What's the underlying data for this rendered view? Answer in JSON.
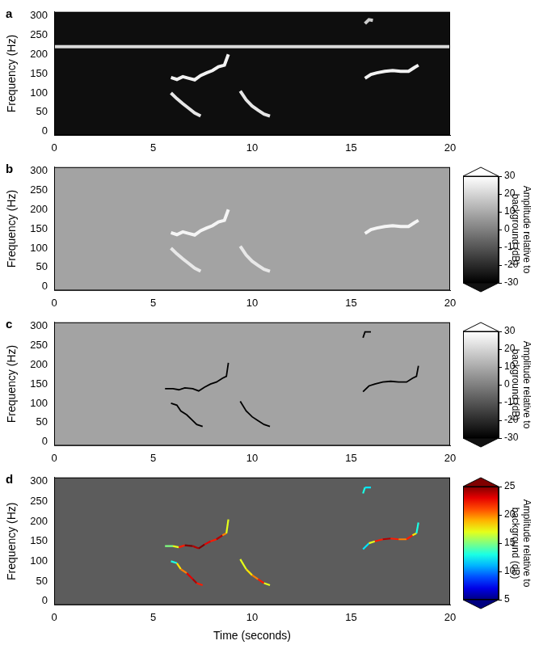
{
  "chart_data": [
    {
      "type": "line",
      "panel": "a",
      "y_label": "Frequency (Hz)",
      "grid": false,
      "xlim": [
        0,
        20
      ],
      "xticks": [
        0,
        5,
        10,
        15,
        20
      ],
      "ylim": [
        -10,
        310
      ],
      "yticks": [
        0,
        50,
        100,
        150,
        200,
        250,
        300
      ],
      "series": [
        {
          "color": "#d9d9d9",
          "x": [
            0,
            20
          ],
          "y": [
            220,
            220
          ]
        },
        {
          "color": "#f2f2f2",
          "x": [
            5.9,
            6.2,
            6.5,
            6.8,
            7.1,
            7.4,
            7.7,
            8.0,
            8.3,
            8.6,
            8.8
          ],
          "y": [
            140,
            135,
            142,
            138,
            134,
            145,
            152,
            158,
            168,
            172,
            200
          ]
        },
        {
          "color": "#e6e6e6",
          "x": [
            5.9,
            6.2,
            6.5,
            6.8,
            7.1,
            7.4
          ],
          "y": [
            100,
            85,
            72,
            60,
            48,
            40
          ]
        },
        {
          "color": "#e6e6e6",
          "x": [
            9.4,
            9.7,
            10.0,
            10.3,
            10.6,
            10.9
          ],
          "y": [
            105,
            82,
            66,
            55,
            45,
            40
          ]
        },
        {
          "color": "#cccccc",
          "x": [
            15.7,
            15.9,
            16.1
          ],
          "y": [
            280,
            290,
            288
          ]
        },
        {
          "color": "#f2f2f2",
          "x": [
            15.7,
            16.0,
            16.3,
            16.7,
            17.1,
            17.5,
            17.9,
            18.2,
            18.4
          ],
          "y": [
            138,
            148,
            152,
            156,
            158,
            156,
            156,
            166,
            172
          ]
        }
      ]
    },
    {
      "type": "line",
      "panel": "b",
      "y_label": "Frequency (Hz)",
      "grid": false,
      "xlim": [
        0,
        20
      ],
      "xticks": [
        0,
        5,
        10,
        15,
        20
      ],
      "ylim": [
        -10,
        310
      ],
      "yticks": [
        0,
        50,
        100,
        150,
        200,
        250,
        300
      ],
      "colorbar": {
        "label": "Amplitude relative to background (dB)",
        "lim": [
          -30,
          30
        ],
        "ticks": [
          -30,
          -20,
          -10,
          0,
          10,
          20,
          30
        ]
      },
      "series": [
        {
          "color": "#f5f5f5",
          "x": [
            5.9,
            6.2,
            6.5,
            6.8,
            7.1,
            7.4,
            7.7,
            8.0,
            8.3,
            8.6,
            8.8
          ],
          "y": [
            140,
            135,
            142,
            138,
            134,
            145,
            152,
            158,
            168,
            172,
            200
          ]
        },
        {
          "color": "#e8e8e8",
          "x": [
            5.9,
            6.2,
            6.5,
            6.8,
            7.1,
            7.4
          ],
          "y": [
            100,
            85,
            72,
            60,
            48,
            40
          ]
        },
        {
          "color": "#e8e8e8",
          "x": [
            9.4,
            9.7,
            10.0,
            10.3,
            10.6,
            10.9
          ],
          "y": [
            105,
            82,
            66,
            55,
            45,
            40
          ]
        },
        {
          "color": "#f5f5f5",
          "x": [
            15.7,
            16.0,
            16.3,
            16.7,
            17.1,
            17.5,
            17.9,
            18.2,
            18.4
          ],
          "y": [
            138,
            148,
            152,
            156,
            158,
            156,
            156,
            166,
            172
          ]
        }
      ]
    },
    {
      "type": "line",
      "panel": "c",
      "y_label": "Frequency (Hz)",
      "grid": false,
      "xlim": [
        0,
        20
      ],
      "xticks": [
        0,
        5,
        10,
        15,
        20
      ],
      "ylim": [
        -10,
        310
      ],
      "yticks": [
        0,
        50,
        100,
        150,
        200,
        250,
        300
      ],
      "colorbar": {
        "label": "Amplitude relative to background (dB)",
        "lim": [
          -30,
          30
        ],
        "ticks": [
          -30,
          -20,
          -10,
          0,
          10,
          20,
          30
        ]
      },
      "series": [
        {
          "color": "#000000",
          "x": [
            5.6,
            6.0,
            6.3,
            6.6,
            7.0,
            7.3,
            7.6,
            7.9,
            8.2,
            8.5,
            8.7,
            8.8
          ],
          "y": [
            138,
            138,
            135,
            140,
            138,
            132,
            142,
            150,
            155,
            165,
            170,
            205
          ]
        },
        {
          "color": "#000000",
          "x": [
            5.9,
            6.2,
            6.4,
            6.7,
            7.0,
            7.2,
            7.5
          ],
          "y": [
            100,
            95,
            80,
            70,
            55,
            45,
            40
          ]
        },
        {
          "color": "#000000",
          "x": [
            9.4,
            9.7,
            10.0,
            10.3,
            10.6,
            10.9
          ],
          "y": [
            105,
            80,
            65,
            55,
            45,
            40
          ]
        },
        {
          "color": "#000000",
          "x": [
            15.6,
            15.7,
            16.0
          ],
          "y": [
            270,
            285,
            285
          ]
        },
        {
          "color": "#000000",
          "x": [
            15.6,
            15.9,
            16.2,
            16.6,
            17.0,
            17.4,
            17.8,
            18.1,
            18.3,
            18.4
          ],
          "y": [
            130,
            145,
            150,
            155,
            157,
            155,
            155,
            165,
            170,
            197
          ]
        }
      ]
    },
    {
      "type": "line",
      "panel": "d",
      "y_label": "Frequency (Hz)",
      "x_label": "Time (seconds)",
      "grid": false,
      "xlim": [
        0,
        20
      ],
      "xticks": [
        0,
        5,
        10,
        15,
        20
      ],
      "ylim": [
        -10,
        310
      ],
      "yticks": [
        0,
        50,
        100,
        150,
        200,
        250,
        300
      ],
      "colorbar": {
        "label": "Amplitude relative to background (dB)",
        "lim": [
          5,
          25
        ],
        "ticks": [
          5,
          10,
          15,
          20,
          25
        ]
      },
      "series": [
        {
          "x": [
            5.6,
            6.0,
            6.3,
            6.6,
            7.0,
            7.3,
            7.6,
            7.9,
            8.2,
            8.5,
            8.7,
            8.8
          ],
          "y": [
            138,
            138,
            135,
            140,
            138,
            132,
            142,
            150,
            155,
            165,
            170,
            205
          ],
          "amplitude": [
            15,
            17,
            22,
            25,
            24,
            25,
            23,
            22,
            24,
            20,
            17,
            16
          ]
        },
        {
          "x": [
            5.9,
            6.2,
            6.4,
            6.7,
            7.0,
            7.2,
            7.5
          ],
          "y": [
            100,
            95,
            80,
            70,
            55,
            45,
            40
          ],
          "amplitude": [
            13,
            18,
            20,
            23,
            24,
            22,
            14
          ]
        },
        {
          "x": [
            9.4,
            9.7,
            10.0,
            10.3,
            10.6,
            10.9
          ],
          "y": [
            105,
            80,
            65,
            55,
            45,
            40
          ],
          "amplitude": [
            17,
            18,
            20,
            22,
            17,
            15
          ]
        },
        {
          "x": [
            15.6,
            15.7,
            16.0
          ],
          "y": [
            270,
            285,
            285
          ],
          "amplitude": [
            13,
            12,
            13
          ]
        },
        {
          "x": [
            15.6,
            15.9,
            16.2,
            16.6,
            17.0,
            17.4,
            17.8,
            18.1,
            18.3,
            18.4
          ],
          "y": [
            130,
            145,
            150,
            155,
            157,
            155,
            155,
            165,
            170,
            197
          ],
          "amplitude": [
            12,
            17,
            22,
            24,
            22,
            20,
            22,
            18,
            13,
            10
          ]
        }
      ]
    }
  ]
}
